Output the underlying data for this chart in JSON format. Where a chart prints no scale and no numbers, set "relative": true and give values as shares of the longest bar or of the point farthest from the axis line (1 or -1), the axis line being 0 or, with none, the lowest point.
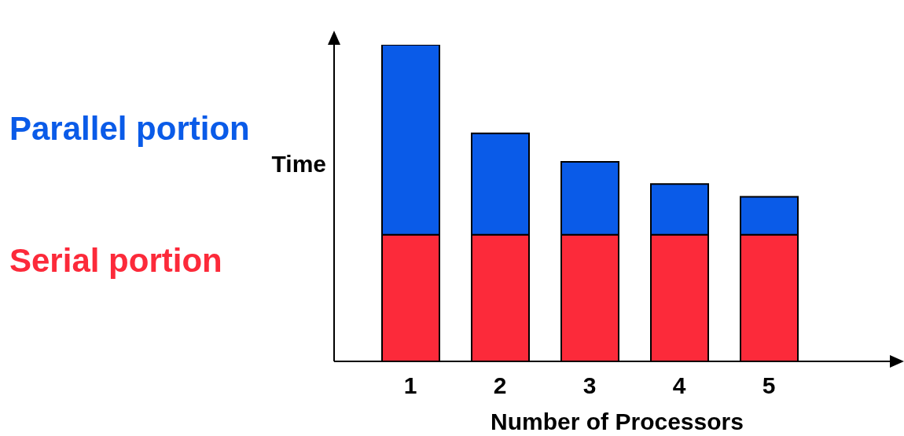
{
  "chart_data": {
    "type": "bar",
    "stacked": true,
    "relative": true,
    "categories": [
      "1",
      "2",
      "3",
      "4",
      "5"
    ],
    "xlabel": "Number of Processors",
    "ylabel": "Time",
    "legend": "left",
    "series": [
      {
        "name": "Serial portion",
        "color": "#fc2a3a",
        "values": [
          0.4,
          0.4,
          0.4,
          0.4,
          0.4
        ]
      },
      {
        "name": "Parallel portion",
        "color": "#0a5be8",
        "values": [
          0.6,
          0.32,
          0.23,
          0.16,
          0.12
        ]
      }
    ]
  }
}
